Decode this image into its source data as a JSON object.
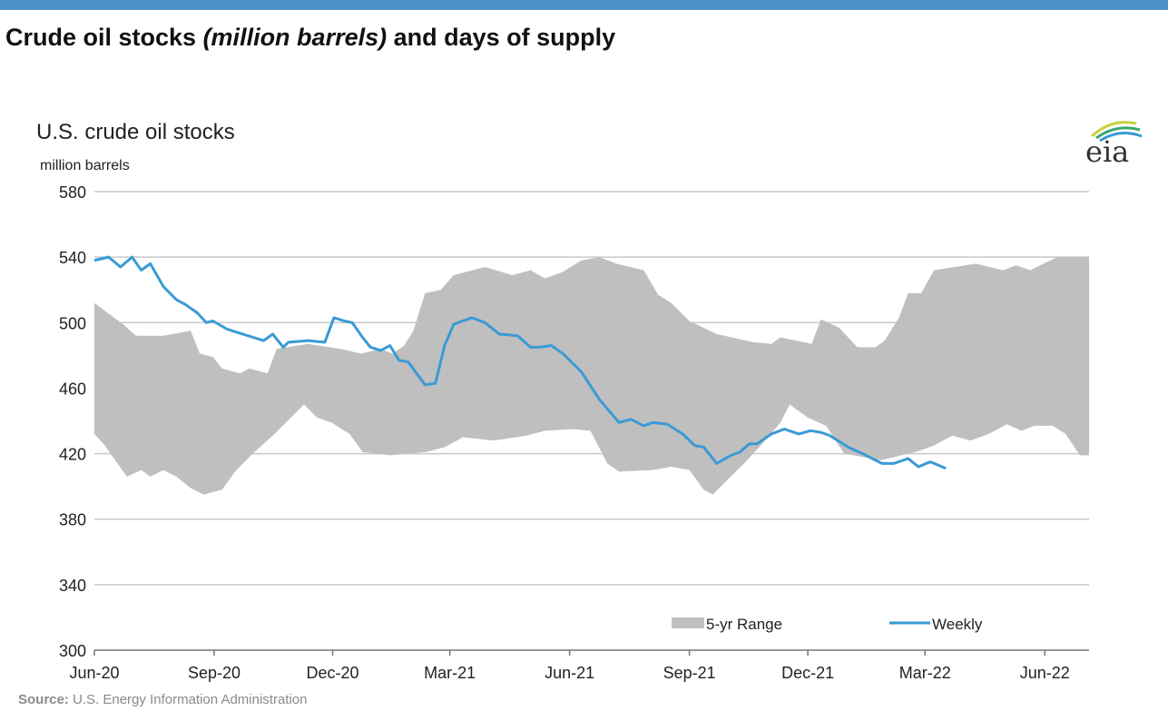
{
  "page": {
    "title_main": "Crude oil stocks ",
    "title_italic": "(million barrels)",
    "title_end": " and days of supply",
    "source_label": "Source:",
    "source_text": " U.S. Energy Information Administration",
    "logo_text": "eia",
    "accent_color": "#4b92c8"
  },
  "chart_data": {
    "type": "line",
    "title": "U.S. crude oil stocks",
    "ylabel": "million barrels",
    "ylim": [
      300,
      580
    ],
    "yticks": [
      300,
      340,
      380,
      420,
      460,
      500,
      540,
      580
    ],
    "xlim": [
      "2020-06-01",
      "2022-07-05"
    ],
    "xticks": [
      {
        "date": "2020-06-01",
        "label": "Jun-20"
      },
      {
        "date": "2020-09-01",
        "label": "Sep-20"
      },
      {
        "date": "2020-12-01",
        "label": "Dec-20"
      },
      {
        "date": "2021-03-01",
        "label": "Mar-21"
      },
      {
        "date": "2021-06-01",
        "label": "Jun-21"
      },
      {
        "date": "2021-09-01",
        "label": "Sep-21"
      },
      {
        "date": "2021-12-01",
        "label": "Dec-21"
      },
      {
        "date": "2022-03-01",
        "label": "Mar-22"
      },
      {
        "date": "2022-06-01",
        "label": "Jun-22"
      }
    ],
    "grid": "horizontal",
    "legend_placement": "bottom-right",
    "series": [
      {
        "name": "5-yr Range",
        "type": "range",
        "color": "#bfbfbf",
        "max": [
          [
            "2020-06-01",
            512
          ],
          [
            "2020-06-23",
            499
          ],
          [
            "2020-07-03",
            492
          ],
          [
            "2020-07-24",
            492
          ],
          [
            "2020-08-14",
            495
          ],
          [
            "2020-08-21",
            481
          ],
          [
            "2020-08-31",
            479
          ],
          [
            "2020-09-07",
            472
          ],
          [
            "2020-09-21",
            469
          ],
          [
            "2020-09-28",
            472
          ],
          [
            "2020-10-12",
            469
          ],
          [
            "2020-10-19",
            484
          ],
          [
            "2020-11-12",
            487
          ],
          [
            "2020-12-07",
            484
          ],
          [
            "2020-12-23",
            481
          ],
          [
            "2021-01-07",
            484
          ],
          [
            "2021-01-16",
            481
          ],
          [
            "2021-01-25",
            486
          ],
          [
            "2021-02-01",
            495
          ],
          [
            "2021-02-10",
            518
          ],
          [
            "2021-02-22",
            520
          ],
          [
            "2021-03-04",
            529
          ],
          [
            "2021-03-28",
            534
          ],
          [
            "2021-04-18",
            529
          ],
          [
            "2021-05-02",
            532
          ],
          [
            "2021-05-13",
            527
          ],
          [
            "2021-05-27",
            531
          ],
          [
            "2021-06-10",
            538
          ],
          [
            "2021-06-24",
            540
          ],
          [
            "2021-07-07",
            536
          ],
          [
            "2021-07-28",
            532
          ],
          [
            "2021-08-08",
            517
          ],
          [
            "2021-08-18",
            512
          ],
          [
            "2021-09-01",
            501
          ],
          [
            "2021-09-22",
            493
          ],
          [
            "2021-10-20",
            488
          ],
          [
            "2021-11-03",
            487
          ],
          [
            "2021-11-10",
            491
          ],
          [
            "2021-12-04",
            487
          ],
          [
            "2021-12-11",
            502
          ],
          [
            "2021-12-25",
            497
          ],
          [
            "2022-01-08",
            485
          ],
          [
            "2022-01-22",
            485
          ],
          [
            "2022-01-29",
            489
          ],
          [
            "2022-02-09",
            503
          ],
          [
            "2022-02-16",
            518
          ],
          [
            "2022-02-26",
            518
          ],
          [
            "2022-03-08",
            532
          ],
          [
            "2022-04-09",
            536
          ],
          [
            "2022-04-30",
            532
          ],
          [
            "2022-05-10",
            535
          ],
          [
            "2022-05-21",
            532
          ],
          [
            "2022-05-31",
            536
          ],
          [
            "2022-06-11",
            540
          ],
          [
            "2022-07-05",
            540
          ]
        ],
        "min": [
          [
            "2020-06-01",
            432
          ],
          [
            "2020-06-09",
            425
          ],
          [
            "2020-06-16",
            417
          ],
          [
            "2020-06-26",
            406
          ],
          [
            "2020-07-07",
            410
          ],
          [
            "2020-07-14",
            406
          ],
          [
            "2020-07-24",
            410
          ],
          [
            "2020-08-03",
            406
          ],
          [
            "2020-08-14",
            399
          ],
          [
            "2020-08-24",
            395
          ],
          [
            "2020-09-07",
            398
          ],
          [
            "2020-09-18",
            410
          ],
          [
            "2020-10-02",
            421
          ],
          [
            "2020-10-16",
            431
          ],
          [
            "2020-10-30",
            442
          ],
          [
            "2020-11-09",
            450
          ],
          [
            "2020-11-19",
            442
          ],
          [
            "2020-11-30",
            439
          ],
          [
            "2020-12-14",
            432
          ],
          [
            "2020-12-24",
            421
          ],
          [
            "2021-01-14",
            419
          ],
          [
            "2021-02-11",
            421
          ],
          [
            "2021-02-25",
            424
          ],
          [
            "2021-03-11",
            430
          ],
          [
            "2021-04-04",
            428
          ],
          [
            "2021-04-29",
            431
          ],
          [
            "2021-05-13",
            434
          ],
          [
            "2021-06-03",
            435
          ],
          [
            "2021-06-17",
            434
          ],
          [
            "2021-06-30",
            414
          ],
          [
            "2021-07-09",
            409
          ],
          [
            "2021-08-04",
            410
          ],
          [
            "2021-08-18",
            412
          ],
          [
            "2021-09-01",
            410
          ],
          [
            "2021-09-12",
            398
          ],
          [
            "2021-09-19",
            395
          ],
          [
            "2021-09-29",
            403
          ],
          [
            "2021-10-13",
            414
          ],
          [
            "2021-10-27",
            426
          ],
          [
            "2021-11-10",
            439
          ],
          [
            "2021-11-17",
            450
          ],
          [
            "2021-12-01",
            442
          ],
          [
            "2021-12-15",
            437
          ],
          [
            "2021-12-29",
            420
          ],
          [
            "2022-01-26",
            416
          ],
          [
            "2022-02-22",
            421
          ],
          [
            "2022-03-08",
            425
          ],
          [
            "2022-03-22",
            431
          ],
          [
            "2022-04-05",
            428
          ],
          [
            "2022-04-19",
            432
          ],
          [
            "2022-05-03",
            438
          ],
          [
            "2022-05-14",
            434
          ],
          [
            "2022-05-24",
            437
          ],
          [
            "2022-06-07",
            437
          ],
          [
            "2022-06-17",
            432
          ],
          [
            "2022-06-28",
            419
          ],
          [
            "2022-07-05",
            419
          ]
        ]
      },
      {
        "name": "Weekly",
        "type": "line",
        "color": "#3a9ad6",
        "points": [
          [
            "2020-06-01",
            538
          ],
          [
            "2020-06-12",
            540
          ],
          [
            "2020-06-21",
            534
          ],
          [
            "2020-06-30",
            540
          ],
          [
            "2020-07-07",
            532
          ],
          [
            "2020-07-14",
            536
          ],
          [
            "2020-07-24",
            522
          ],
          [
            "2020-08-03",
            514
          ],
          [
            "2020-08-10",
            511
          ],
          [
            "2020-08-19",
            506
          ],
          [
            "2020-08-26",
            500
          ],
          [
            "2020-08-31",
            501
          ],
          [
            "2020-09-11",
            496
          ],
          [
            "2020-09-23",
            493
          ],
          [
            "2020-10-09",
            489
          ],
          [
            "2020-10-16",
            493
          ],
          [
            "2020-10-24",
            485
          ],
          [
            "2020-10-28",
            488
          ],
          [
            "2020-11-12",
            489
          ],
          [
            "2020-11-25",
            488
          ],
          [
            "2020-12-02",
            503
          ],
          [
            "2020-12-10",
            501
          ],
          [
            "2020-12-16",
            500
          ],
          [
            "2020-12-24",
            491
          ],
          [
            "2020-12-30",
            485
          ],
          [
            "2021-01-07",
            483
          ],
          [
            "2021-01-14",
            486
          ],
          [
            "2021-01-21",
            477
          ],
          [
            "2021-01-28",
            476
          ],
          [
            "2021-02-10",
            462
          ],
          [
            "2021-02-18",
            463
          ],
          [
            "2021-02-25",
            486
          ],
          [
            "2021-03-04",
            499
          ],
          [
            "2021-03-18",
            503
          ],
          [
            "2021-03-28",
            500
          ],
          [
            "2021-04-08",
            493
          ],
          [
            "2021-04-22",
            492
          ],
          [
            "2021-05-02",
            485
          ],
          [
            "2021-05-09",
            485
          ],
          [
            "2021-05-18",
            486
          ],
          [
            "2021-05-27",
            481
          ],
          [
            "2021-06-10",
            470
          ],
          [
            "2021-06-24",
            453
          ],
          [
            "2021-07-09",
            439
          ],
          [
            "2021-07-18",
            441
          ],
          [
            "2021-07-28",
            437
          ],
          [
            "2021-08-04",
            439
          ],
          [
            "2021-08-15",
            438
          ],
          [
            "2021-08-27",
            432
          ],
          [
            "2021-09-05",
            425
          ],
          [
            "2021-09-12",
            424
          ],
          [
            "2021-09-22",
            414
          ],
          [
            "2021-10-03",
            419
          ],
          [
            "2021-10-10",
            421
          ],
          [
            "2021-10-17",
            426
          ],
          [
            "2021-10-23",
            426
          ],
          [
            "2021-11-03",
            432
          ],
          [
            "2021-11-13",
            435
          ],
          [
            "2021-11-24",
            432
          ],
          [
            "2021-12-03",
            434
          ],
          [
            "2021-12-11",
            433
          ],
          [
            "2021-12-18",
            431
          ],
          [
            "2022-01-01",
            424
          ],
          [
            "2022-01-12",
            420
          ],
          [
            "2022-01-27",
            414
          ],
          [
            "2022-02-05",
            414
          ],
          [
            "2022-02-16",
            417
          ],
          [
            "2022-02-24",
            412
          ],
          [
            "2022-03-05",
            415
          ],
          [
            "2022-03-17",
            411
          ]
        ]
      }
    ]
  }
}
